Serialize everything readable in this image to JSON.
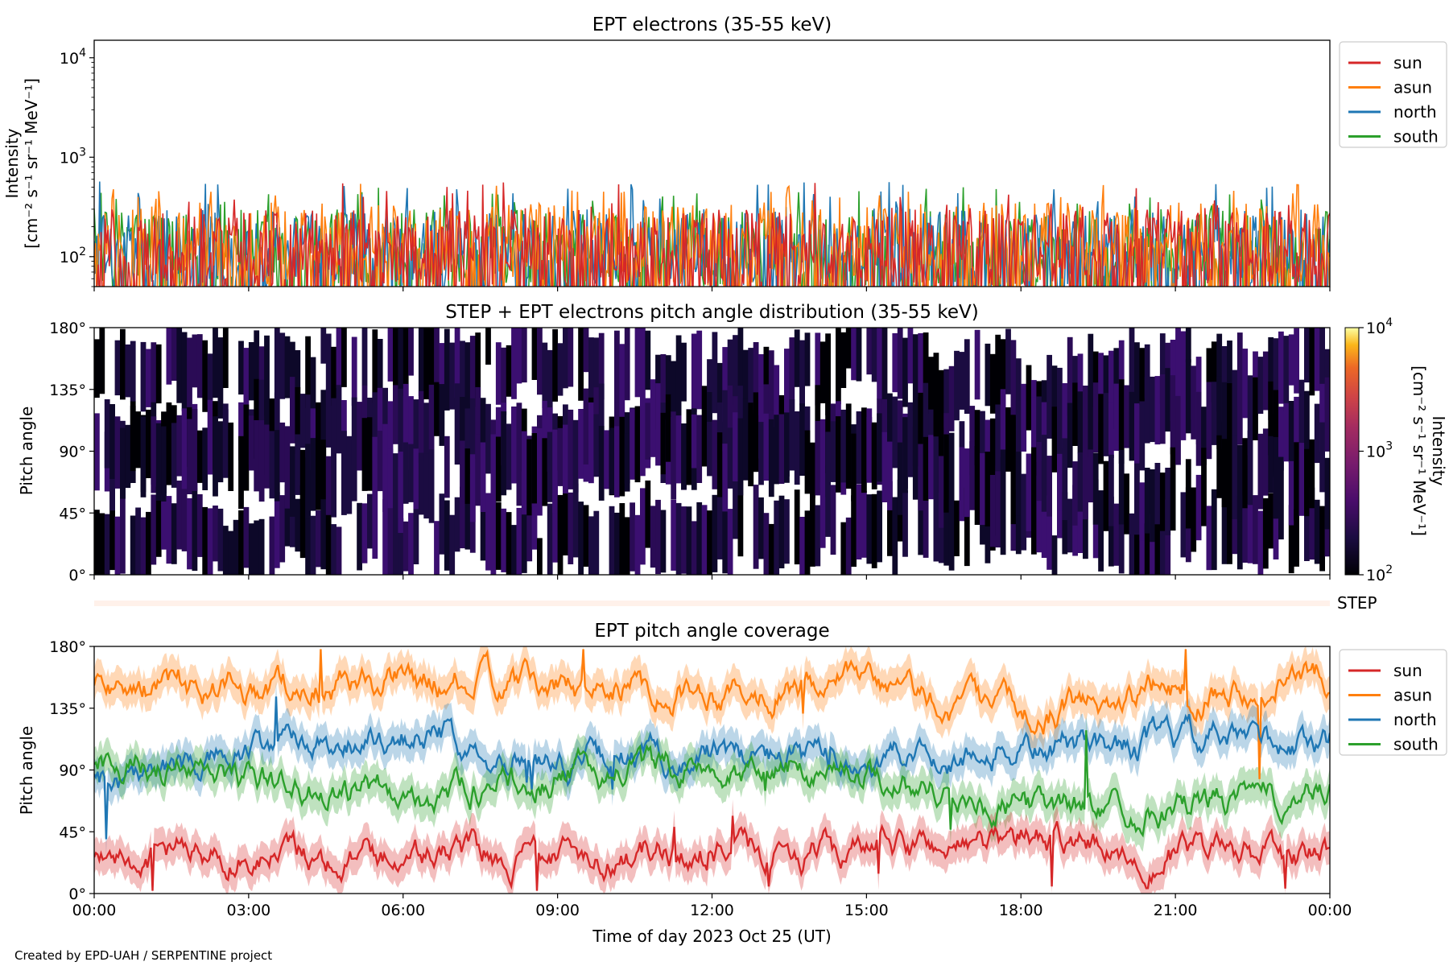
{
  "figure": {
    "footer": "Created by EPD-UAH / SERPENTINE project",
    "xlabel": "Time of day 2023 Oct 25 (UT)",
    "x_ticks": [
      "00:00",
      "03:00",
      "06:00",
      "09:00",
      "12:00",
      "15:00",
      "18:00",
      "21:00",
      "00:00"
    ],
    "colors": {
      "sun": "#d62728",
      "asun": "#ff7f0e",
      "north": "#1f77b4",
      "south": "#2ca02c"
    }
  },
  "panels": {
    "intensity": {
      "title": "EPT electrons (35-55 keV)",
      "ylabel_line1": "Intensity",
      "ylabel_line2": "[cm⁻² s⁻¹ sr⁻¹ MeV⁻¹]",
      "y_ticks": [
        {
          "base": "10",
          "exp": "4"
        },
        {
          "base": "10",
          "exp": "3"
        },
        {
          "base": "10",
          "exp": "2"
        }
      ],
      "legend": [
        "sun",
        "asun",
        "north",
        "south"
      ]
    },
    "pad": {
      "title": "STEP + EPT electrons pitch angle distribution (35-55 keV)",
      "ylabel": "Pitch angle",
      "y_ticks": [
        "180°",
        "135°",
        "90°",
        "45°",
        "0°"
      ],
      "colorbar_label": "Intensity",
      "colorbar_units": "[cm⁻² s⁻¹ sr⁻¹ MeV⁻¹]",
      "colorbar_ticks": [
        {
          "base": "10",
          "exp": "4"
        },
        {
          "base": "10",
          "exp": "3"
        },
        {
          "base": "10",
          "exp": "2"
        }
      ]
    },
    "step": {
      "label": "STEP"
    },
    "coverage": {
      "title": "EPT pitch angle coverage",
      "ylabel": "Pitch angle",
      "y_ticks": [
        "180°",
        "135°",
        "90°",
        "45°",
        "0°"
      ],
      "legend": [
        "sun",
        "asun",
        "north",
        "south"
      ]
    }
  },
  "chart_data": [
    {
      "type": "line",
      "title": "EPT electrons (35-55 keV)",
      "xlabel": "Time of day 2023 Oct 25 (UT)",
      "ylabel": "Intensity [cm⁻² s⁻¹ sr⁻¹ MeV⁻¹]",
      "x_range": [
        "2023-10-25 00:00",
        "2023-10-26 00:00"
      ],
      "yscale": "log",
      "ylim": [
        50,
        15000
      ],
      "legend_position": "outside-right-top",
      "series": [
        {
          "name": "sun",
          "typical_range": [
            50,
            300
          ],
          "peak": 560
        },
        {
          "name": "asun",
          "typical_range": [
            50,
            350
          ],
          "peak": 550
        },
        {
          "name": "north",
          "typical_range": [
            50,
            300
          ],
          "peak": 580
        },
        {
          "name": "south",
          "typical_range": [
            50,
            300
          ],
          "peak": 500
        }
      ]
    },
    {
      "type": "heatmap",
      "title": "STEP + EPT electrons pitch angle distribution (35-55 keV)",
      "ylabel": "Pitch angle",
      "ylim": [
        0,
        180
      ],
      "colorbar": {
        "label": "Intensity [cm⁻² s⁻¹ sr⁻¹ MeV⁻¹]",
        "scale": "log",
        "range": [
          100,
          10000
        ],
        "colormap": "inferno"
      },
      "typical_intensity": [
        100,
        200
      ]
    },
    {
      "type": "line",
      "title": "EPT pitch angle coverage",
      "xlabel": "Time of day 2023 Oct 25 (UT)",
      "ylabel": "Pitch angle",
      "ylim": [
        0,
        180
      ],
      "legend_position": "outside-right-top",
      "series": [
        {
          "name": "sun",
          "hours": [
            0,
            3,
            6,
            9,
            12,
            15,
            18,
            21,
            24
          ],
          "values": [
            30,
            28,
            28,
            30,
            30,
            30,
            40,
            28,
            25
          ]
        },
        {
          "name": "asun",
          "hours": [
            0,
            3,
            6,
            9,
            12,
            15,
            18,
            21,
            24
          ],
          "values": [
            150,
            150,
            155,
            150,
            150,
            150,
            130,
            150,
            160
          ]
        },
        {
          "name": "north",
          "hours": [
            0,
            3,
            6,
            9,
            12,
            15,
            18,
            21,
            24
          ],
          "values": [
            80,
            100,
            120,
            95,
            100,
            95,
            105,
            110,
            110
          ]
        },
        {
          "name": "south",
          "hours": [
            0,
            3,
            6,
            9,
            12,
            15,
            18,
            21,
            24
          ],
          "values": [
            100,
            80,
            70,
            85,
            95,
            90,
            60,
            65,
            70
          ]
        }
      ]
    }
  ]
}
